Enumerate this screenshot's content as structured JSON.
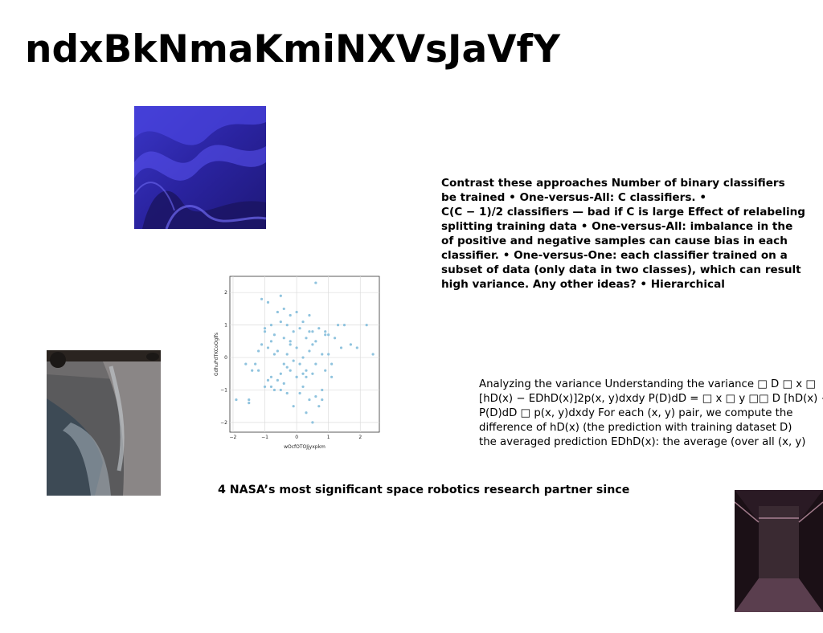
{
  "title": "ndxBkNmaKmiNXVsJaVfY",
  "text_bold_lines": [
    "Contrast these approaches Number of binary classifiers",
    "be trained • One-versus-All: C classifiers. •",
    "C(C − 1)/2 classifiers — bad if C is large Effect of relabeling",
    "splitting training data • One-versus-All: imbalance in the",
    "of positive and negative samples can cause bias in each",
    "classifier. • One-versus-One: each classifier trained on a",
    "subset of data (only data in two classes), which can result",
    "high variance. Any other ideas? • Hierarchical"
  ],
  "text_variance_lines": [
    "Analyzing the variance Understanding the variance □ D □ x □",
    "[hD(x) − EDhD(x)]2p(x, y)dxdy P(D)dD = □ x □ y □□ D [hD(x) −",
    "P(D)dD □ p(x, y)dxdy For each (x, y) pair, we compute the",
    "difference of hD(x) (the prediction with training dataset D)",
    "the averaged prediction EDhD(x): the average (over all (x, y)"
  ],
  "caption": "4 NASA’s most significant space robotics research partner since",
  "images": {
    "wave": "abstract blue wave image",
    "beach": "beach shoreline photo",
    "hall": "dark corridor photo"
  },
  "chart_data": {
    "type": "scatter",
    "xlabel": "wOcfOTOJjyxpkm",
    "ylabel": "GdhuPdTKCoOglfs",
    "xlim": [
      -2.1,
      2.6
    ],
    "ylim": [
      -2.3,
      2.5
    ],
    "xticks": [
      -2,
      -1,
      0,
      1,
      2
    ],
    "yticks": [
      2,
      1,
      0,
      -1,
      -2
    ],
    "grid": true,
    "color": "#8fc3de",
    "x": [
      -1.9,
      -1.6,
      -1.5,
      -1.4,
      -1.3,
      -1.2,
      -1.1,
      -1.1,
      -1.0,
      -1.0,
      -0.9,
      -0.9,
      -0.8,
      -0.8,
      -0.8,
      -0.7,
      -0.7,
      -0.6,
      -0.6,
      -0.6,
      -0.5,
      -0.5,
      -0.5,
      -0.4,
      -0.4,
      -0.4,
      -0.3,
      -0.3,
      -0.3,
      -0.2,
      -0.2,
      -0.2,
      -0.1,
      -0.1,
      -0.1,
      0.0,
      0.0,
      0.0,
      0.1,
      0.1,
      0.1,
      0.2,
      0.2,
      0.2,
      0.3,
      0.3,
      0.3,
      0.4,
      0.4,
      0.4,
      0.5,
      0.5,
      0.5,
      0.6,
      0.6,
      0.6,
      0.7,
      0.7,
      0.8,
      0.8,
      0.9,
      0.9,
      1.0,
      1.0,
      1.1,
      1.2,
      1.3,
      1.4,
      1.5,
      1.7,
      1.9,
      2.2,
      2.4,
      -1.5,
      -1.2,
      -0.9,
      -0.5,
      -0.2,
      0.2,
      0.5,
      0.8,
      -0.7,
      0.0,
      0.4,
      -0.3,
      0.6,
      -1.0,
      0.3,
      -0.8,
      1.1,
      0.9,
      -0.4
    ],
    "y": [
      -1.3,
      -0.2,
      -1.3,
      -0.4,
      -0.2,
      0.2,
      1.8,
      0.4,
      0.8,
      -0.9,
      1.7,
      0.3,
      1.0,
      -0.6,
      0.5,
      0.7,
      -1.0,
      1.4,
      0.2,
      -0.7,
      1.9,
      1.1,
      -0.5,
      1.5,
      0.6,
      -0.8,
      1.0,
      0.1,
      -1.1,
      1.3,
      0.4,
      -0.4,
      0.8,
      -0.1,
      -1.5,
      1.4,
      0.3,
      -0.6,
      0.9,
      -0.2,
      -1.1,
      1.1,
      0.0,
      -0.9,
      0.6,
      -0.4,
      -1.7,
      1.3,
      0.2,
      -1.3,
      0.8,
      -0.5,
      -2.0,
      2.3,
      0.5,
      -0.2,
      0.9,
      -1.5,
      0.1,
      -1.0,
      0.8,
      -0.4,
      0.7,
      0.1,
      -0.6,
      0.6,
      1.0,
      0.3,
      1.0,
      0.4,
      0.3,
      1.0,
      0.1,
      -1.4,
      -0.4,
      -0.7,
      -1.0,
      0.5,
      -0.5,
      0.4,
      -1.3,
      0.1,
      -0.6,
      0.8,
      -0.3,
      -1.2,
      0.9,
      -0.6,
      -0.9,
      -0.2,
      0.7,
      -0.2
    ]
  }
}
